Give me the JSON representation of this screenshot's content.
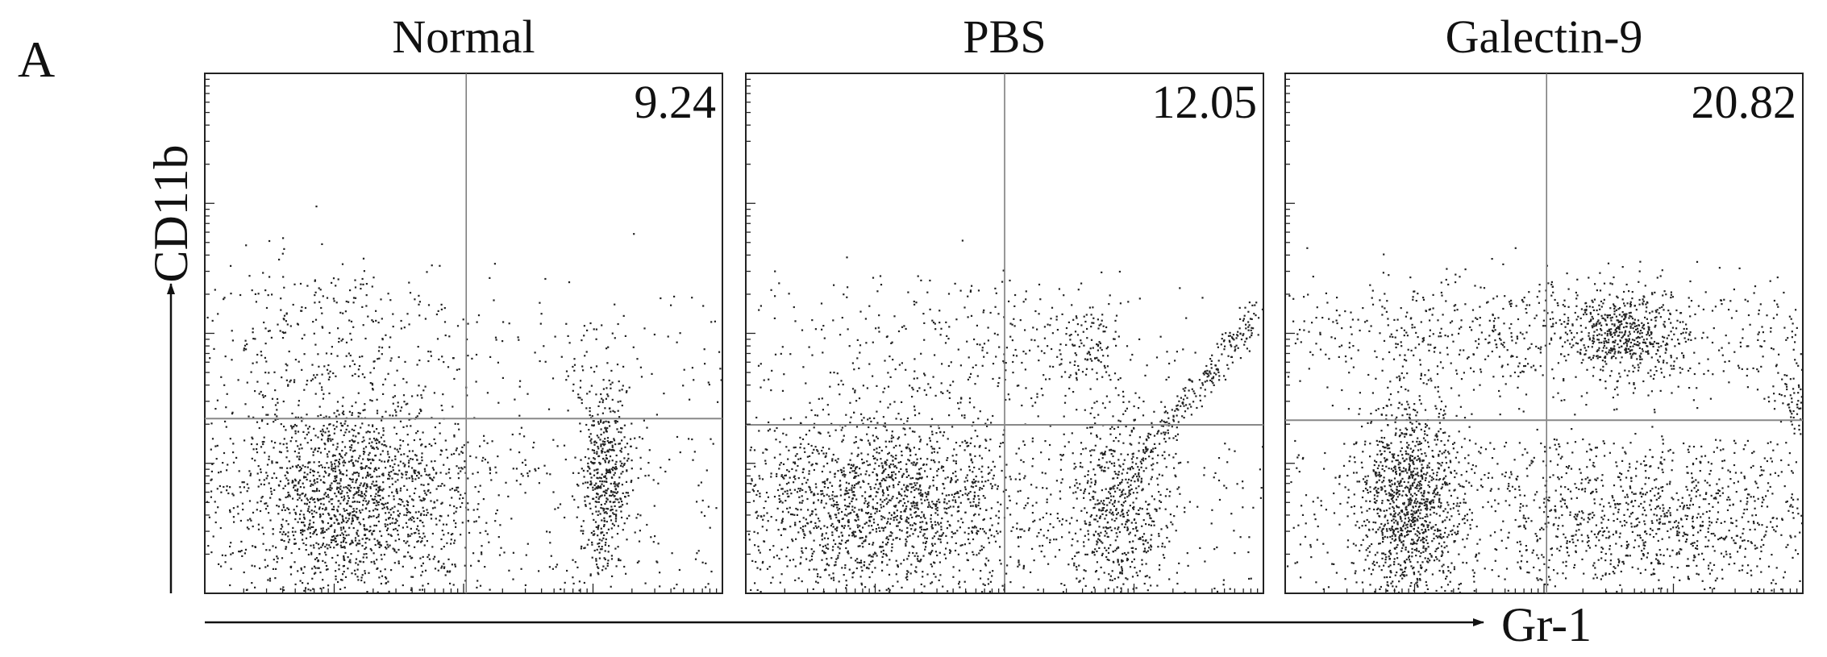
{
  "panel_label": "A",
  "y_axis_label": "CD11b",
  "x_axis_label": "Gr-1",
  "panels": [
    {
      "title": "Normal",
      "quadrant_value": 9.24
    },
    {
      "title": "PBS",
      "quadrant_value": 12.05
    },
    {
      "title": "Galectin-9",
      "quadrant_value": 20.82
    }
  ]
}
